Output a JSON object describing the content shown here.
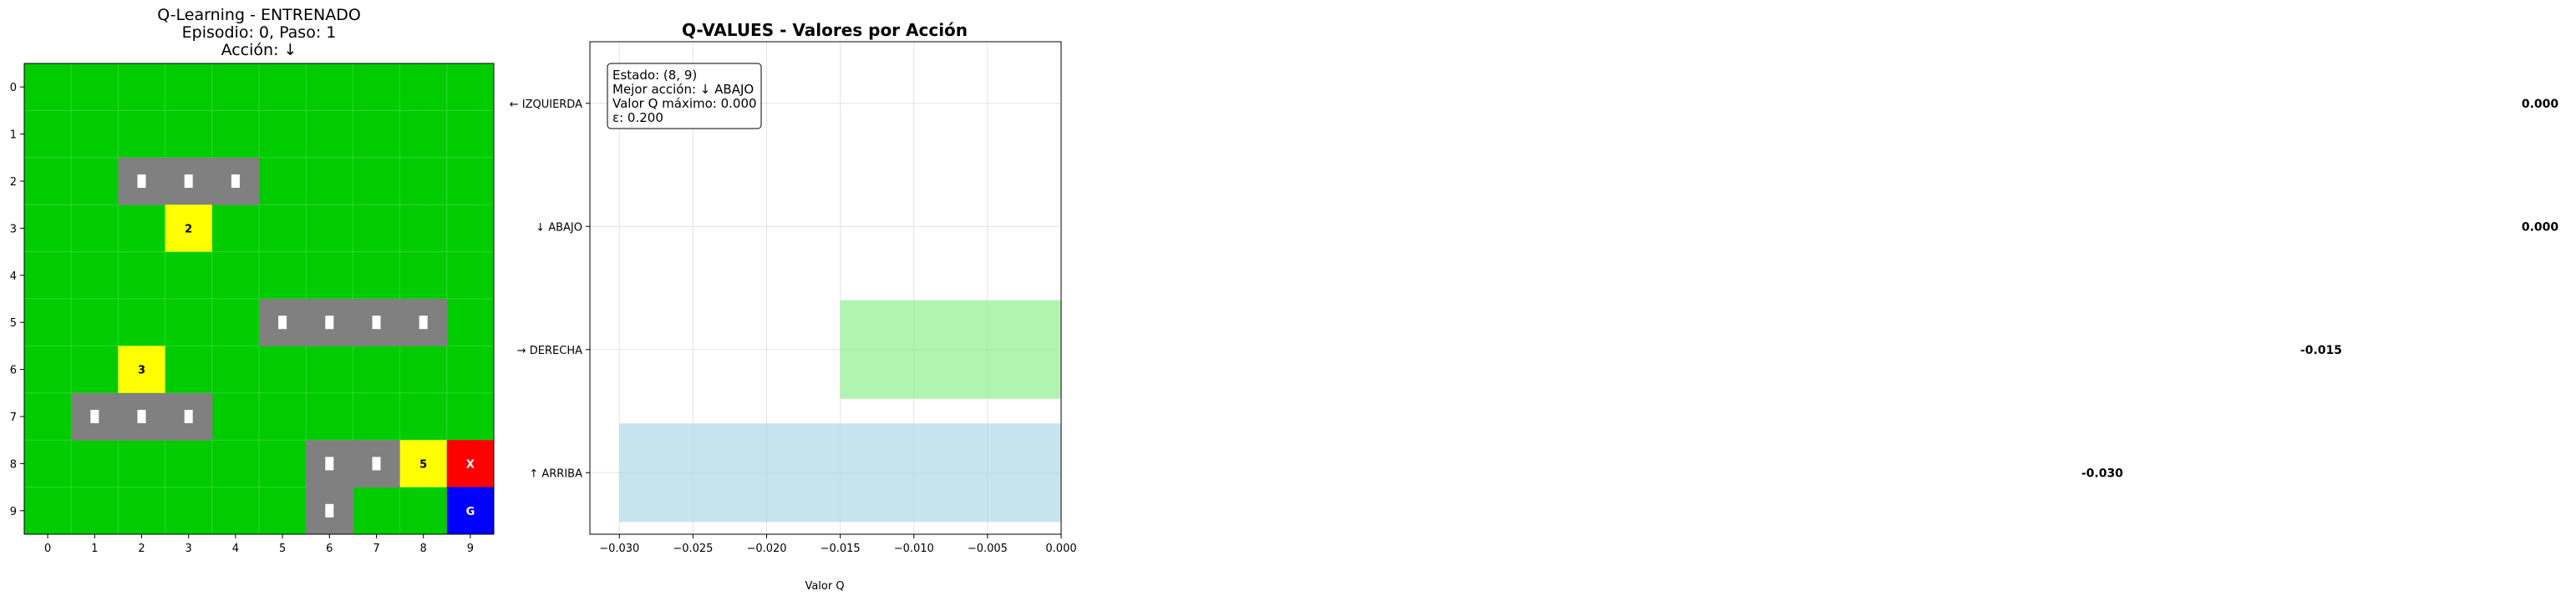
{
  "grid_panel": {
    "title_line1": "Q-Learning - ENTRENADO",
    "title_line2": "Episodio: 0, Paso: 1",
    "title_line3": "Acción: ↓",
    "size": 10,
    "ticks": [
      "0",
      "1",
      "2",
      "3",
      "4",
      "5",
      "6",
      "7",
      "8",
      "9"
    ],
    "colors": {
      "free": "#00cc00",
      "road": "#808080",
      "marker": "#ffffff",
      "numbered": "#ffff00",
      "agent": "#ff0000",
      "goal": "#0000ff"
    },
    "road_cells": [
      {
        "row": 2,
        "col": 2,
        "marker": true
      },
      {
        "row": 2,
        "col": 3,
        "marker": true
      },
      {
        "row": 2,
        "col": 4,
        "marker": true
      },
      {
        "row": 5,
        "col": 5,
        "marker": true
      },
      {
        "row": 5,
        "col": 6,
        "marker": true
      },
      {
        "row": 5,
        "col": 7,
        "marker": true
      },
      {
        "row": 5,
        "col": 8,
        "marker": true
      },
      {
        "row": 7,
        "col": 1,
        "marker": true
      },
      {
        "row": 7,
        "col": 2,
        "marker": true
      },
      {
        "row": 7,
        "col": 3,
        "marker": true
      },
      {
        "row": 8,
        "col": 6,
        "marker": true
      },
      {
        "row": 8,
        "col": 7,
        "marker": true
      },
      {
        "row": 9,
        "col": 6,
        "marker": true
      }
    ],
    "numbered_cells": [
      {
        "row": 3,
        "col": 3,
        "label": "2"
      },
      {
        "row": 6,
        "col": 2,
        "label": "3"
      },
      {
        "row": 8,
        "col": 8,
        "label": "5"
      }
    ],
    "agent": {
      "row": 8,
      "col": 9,
      "label": "X"
    },
    "goal": {
      "row": 9,
      "col": 9,
      "label": "G"
    }
  },
  "chart_data": {
    "type": "bar",
    "orientation": "horizontal",
    "title": "Q-VALUES - Valores por Acción",
    "xlabel": "Valor Q",
    "ylabel": "",
    "categories": [
      "← IZQUIERDA",
      "↓ ABAJO",
      "→ DERECHA",
      "↑ ARRIBA"
    ],
    "values": [
      0.0,
      0.0,
      -0.015,
      -0.03
    ],
    "value_labels": [
      "0.000",
      "0.000",
      "-0.015",
      "-0.030"
    ],
    "bar_colors": [
      "#add8e6",
      "#90ee90",
      "#90ee90",
      "#add8e6"
    ],
    "xlim": [
      -0.032,
      0.0
    ],
    "xticks": [
      -0.03,
      -0.025,
      -0.02,
      -0.015,
      -0.01,
      -0.005,
      0.0
    ],
    "xtick_labels": [
      "−0.030",
      "−0.025",
      "−0.020",
      "−0.015",
      "−0.010",
      "−0.005",
      "0.000"
    ],
    "grid": true,
    "info_box": {
      "line1": "Estado: (8, 9)",
      "line2": "Mejor acción: ↓ ABAJO",
      "line3": "Valor Q máximo: 0.000",
      "line4": "ε: 0.200"
    }
  }
}
